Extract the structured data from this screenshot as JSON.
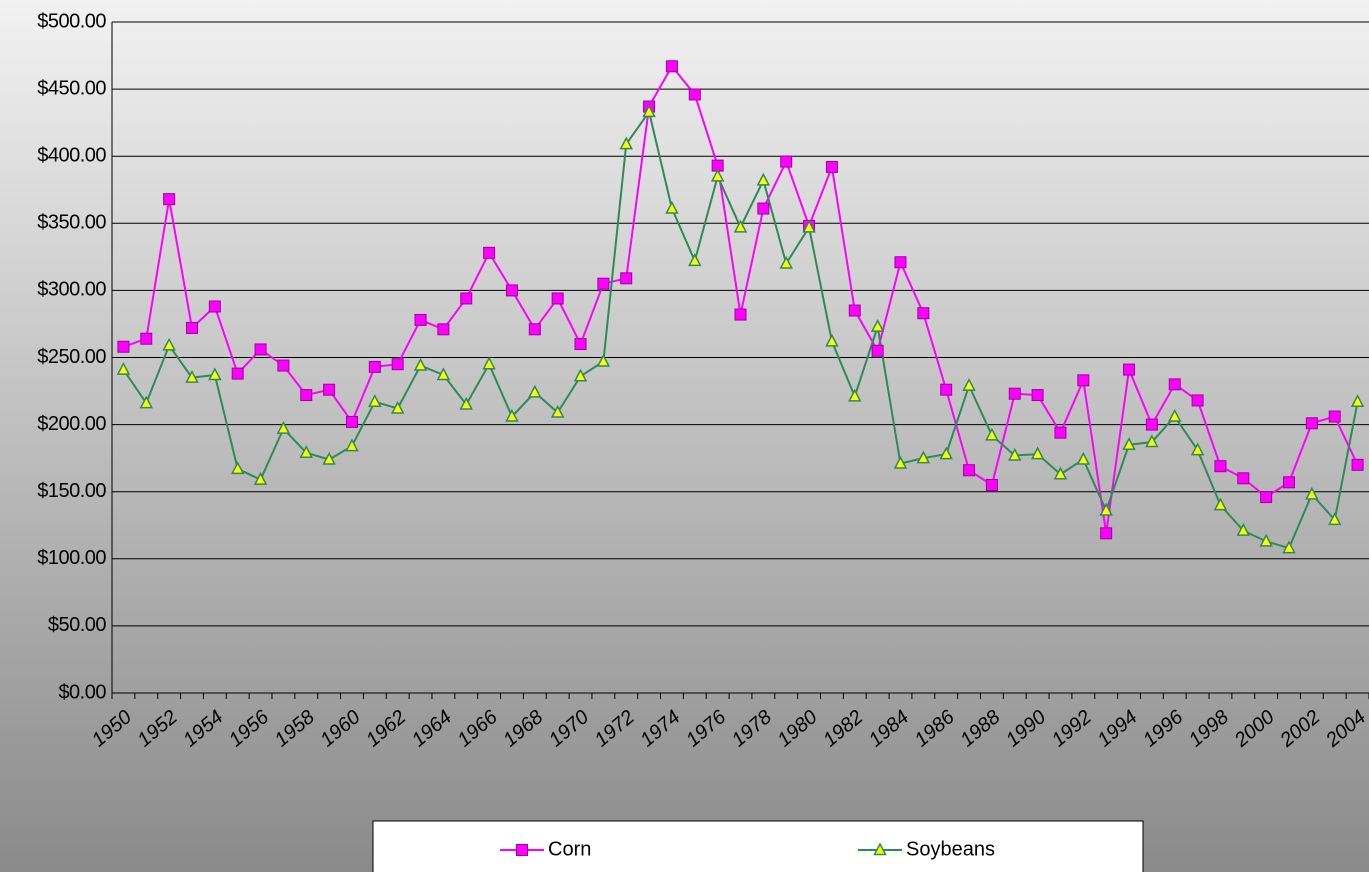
{
  "chart_data": {
    "type": "line",
    "categories": [
      "1950",
      null,
      "1952",
      null,
      "1954",
      null,
      "1956",
      null,
      "1958",
      null,
      "1960",
      null,
      "1962",
      null,
      "1964",
      null,
      "1966",
      null,
      "1968",
      null,
      "1970",
      null,
      "1972",
      null,
      "1974",
      null,
      "1976",
      null,
      "1978",
      null,
      "1980",
      null,
      "1982",
      null,
      "1984",
      null,
      "1986",
      null,
      "1988",
      null,
      "1990",
      null,
      "1992",
      null,
      "1994",
      null,
      "1996",
      null,
      "1998",
      null,
      "2000",
      null,
      "2002",
      null,
      "2004"
    ],
    "series": [
      {
        "name": "Corn",
        "color": "#ff00ff",
        "marker": "square",
        "values": [
          258,
          264,
          368,
          272,
          288,
          238,
          256,
          244,
          222,
          226,
          202,
          243,
          245,
          278,
          271,
          294,
          328,
          300,
          271,
          294,
          260,
          305,
          309,
          437,
          467,
          446,
          393,
          282,
          361,
          396,
          348,
          392,
          285,
          255,
          321,
          283,
          226,
          166,
          155,
          223,
          222,
          194,
          233,
          119,
          241,
          200,
          230,
          218,
          169,
          160,
          146,
          157,
          201,
          206,
          170
        ]
      },
      {
        "name": "Soybeans",
        "color": "#2e8b57",
        "marker": "triangle",
        "values": [
          241,
          216,
          259,
          235,
          237,
          167,
          159,
          197,
          179,
          174,
          184,
          217,
          212,
          244,
          237,
          215,
          245,
          206,
          224,
          209,
          236,
          247,
          409,
          433,
          361,
          322,
          385,
          347,
          382,
          320,
          347,
          262,
          221,
          273,
          171,
          175,
          178,
          229,
          192,
          177,
          178,
          163,
          174,
          136,
          185,
          187,
          206,
          181,
          140,
          121,
          113,
          108,
          148,
          129,
          217
        ]
      }
    ],
    "ylim": [
      0,
      500
    ],
    "yticks": [
      {
        "value": 0,
        "label": "$0.00"
      },
      {
        "value": 50,
        "label": "$50.00"
      },
      {
        "value": 100,
        "label": "$100.00"
      },
      {
        "value": 150,
        "label": "$150.00"
      },
      {
        "value": 200,
        "label": "$200.00"
      },
      {
        "value": 250,
        "label": "$250.00"
      },
      {
        "value": 300,
        "label": "$300.00"
      },
      {
        "value": 350,
        "label": "$350.00"
      },
      {
        "value": 400,
        "label": "$400.00"
      },
      {
        "value": 450,
        "label": "$450.00"
      },
      {
        "value": 500,
        "label": "$500.00"
      }
    ],
    "grid": true,
    "legend": "bottom"
  }
}
